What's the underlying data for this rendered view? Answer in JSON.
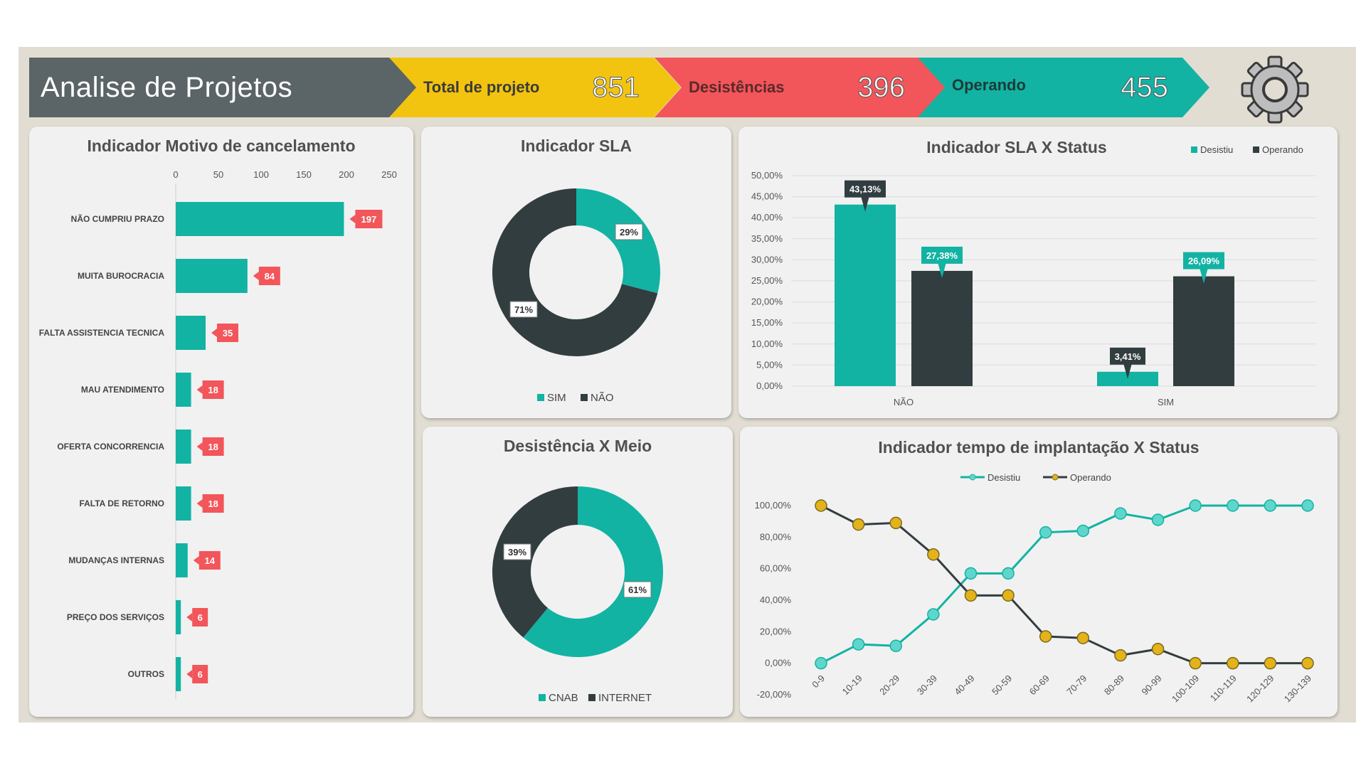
{
  "header": {
    "title": "Analise de Projetos",
    "kpis": [
      {
        "label": "Total de projeto",
        "value": "851"
      },
      {
        "label": "Desistências",
        "value": "396"
      },
      {
        "label": "Operando",
        "value": "455"
      }
    ],
    "settings_icon": "gear-icon"
  },
  "colors": {
    "teal": "#12b3a3",
    "dark": "#323d40",
    "red": "#f2555a",
    "yellow": "#f2c40f",
    "gold": "#e3b319"
  },
  "chart_data": [
    {
      "id": "motivo",
      "type": "bar",
      "orientation": "horizontal",
      "title": "Indicador Motivo de cancelamento",
      "categories": [
        "NÃO CUMPRIU PRAZO",
        "MUITA BUROCRACIA",
        "FALTA ASSISTENCIA TECNICA",
        "MAU ATENDIMENTO",
        "OFERTA CONCORRENCIA",
        "FALTA DE RETORNO",
        "MUDANÇAS INTERNAS",
        "PREÇO DOS SERVIÇOS",
        "OUTROS"
      ],
      "values": [
        197,
        84,
        35,
        18,
        18,
        18,
        14,
        6,
        6
      ],
      "data_labels": [
        "197",
        "84",
        "35",
        "18",
        "18",
        "18",
        "14",
        "6",
        "6"
      ],
      "xlim": [
        0,
        250
      ],
      "ticks": [
        "0",
        "50",
        "100",
        "150",
        "200",
        "250"
      ],
      "axis_position": "top"
    },
    {
      "id": "sla",
      "type": "pie",
      "donut": true,
      "title": "Indicador SLA",
      "labels": [
        "SIM",
        "NÃO"
      ],
      "values": [
        29,
        71
      ],
      "data_labels": [
        "29%",
        "71%"
      ],
      "legend": "bottom"
    },
    {
      "id": "sla_status",
      "type": "bar",
      "title": "Indicador SLA X Status",
      "categories": [
        "NÃO",
        "SIM"
      ],
      "series": [
        {
          "name": "Desistiu",
          "values": [
            43.13,
            3.41
          ],
          "data_labels": [
            "43,13%",
            "3,41%"
          ]
        },
        {
          "name": "Operando",
          "values": [
            27.38,
            26.09
          ],
          "data_labels": [
            "27,38%",
            "26,09%"
          ]
        }
      ],
      "ylim": [
        0,
        50
      ],
      "yticks": [
        "50,00%",
        "45,00%",
        "40,00%",
        "35,00%",
        "30,00%",
        "25,00%",
        "20,00%",
        "15,00%",
        "10,00%",
        "5,00%",
        "0,00%"
      ],
      "grid": true,
      "legend": "top-right"
    },
    {
      "id": "meio",
      "type": "pie",
      "donut": true,
      "title": "Desistência X Meio",
      "labels": [
        "CNAB",
        "INTERNET"
      ],
      "values": [
        61,
        39
      ],
      "data_labels": [
        "61%",
        "39%"
      ],
      "legend": "bottom"
    },
    {
      "id": "tempo",
      "type": "line",
      "title": "Indicador tempo de implantação X Status",
      "categories": [
        "0-9",
        "10-19",
        "20-29",
        "30-39",
        "40-49",
        "50-59",
        "60-69",
        "70-79",
        "80-89",
        "90-99",
        "100-109",
        "110-119",
        "120-129",
        "130-139"
      ],
      "series": [
        {
          "name": "Desistiu",
          "values": [
            0,
            12,
            11,
            31,
            57,
            57,
            83,
            84,
            95,
            91,
            100,
            100,
            100,
            100
          ]
        },
        {
          "name": "Operando",
          "values": [
            100,
            88,
            89,
            69,
            43,
            43,
            17,
            16,
            5,
            9,
            0,
            0,
            0,
            0
          ]
        }
      ],
      "ylim": [
        -20,
        100
      ],
      "yticks": [
        "100,00%",
        "80,00%",
        "60,00%",
        "40,00%",
        "20,00%",
        "0,00%",
        "-20,00%"
      ],
      "legend": "top"
    }
  ]
}
